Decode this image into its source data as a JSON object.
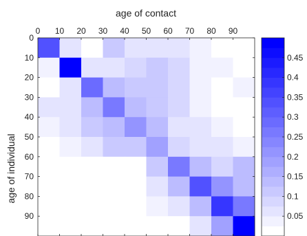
{
  "chart_data": {
    "type": "heatmap",
    "title": "",
    "xlabel": "age of contact",
    "ylabel": "age of individual",
    "x_bins": [
      0,
      10,
      20,
      30,
      40,
      50,
      60,
      70,
      80,
      90
    ],
    "y_bins": [
      0,
      10,
      20,
      30,
      40,
      50,
      60,
      70,
      80,
      90
    ],
    "x_tick_labels": [
      "0",
      "10",
      "20",
      "30",
      "40",
      "50",
      "60",
      "70",
      "80",
      "90"
    ],
    "y_tick_labels": [
      "0",
      "10",
      "20",
      "30",
      "40",
      "50",
      "60",
      "70",
      "80",
      "90"
    ],
    "values": [
      [
        0.33,
        0.05,
        0.02,
        0.12,
        0.06,
        0.06,
        0.06,
        0.03,
        0.02,
        0.02
      ],
      [
        0.03,
        0.49,
        0.05,
        0.05,
        0.08,
        0.1,
        0.08,
        0.03,
        0.03,
        0.0
      ],
      [
        0.0,
        0.05,
        0.28,
        0.15,
        0.1,
        0.1,
        0.08,
        0.03,
        0.0,
        0.03
      ],
      [
        0.07,
        0.07,
        0.15,
        0.25,
        0.15,
        0.12,
        0.09,
        0.03,
        0.0,
        0.0
      ],
      [
        0.03,
        0.05,
        0.1,
        0.15,
        0.22,
        0.14,
        0.07,
        0.05,
        0.03,
        0.0
      ],
      [
        0.0,
        0.03,
        0.07,
        0.1,
        0.1,
        0.18,
        0.08,
        0.05,
        0.05,
        0.04
      ],
      [
        0.0,
        0.0,
        0.0,
        0.0,
        0.0,
        0.1,
        0.25,
        0.15,
        0.08,
        0.13
      ],
      [
        0.0,
        0.0,
        0.0,
        0.02,
        0.02,
        0.05,
        0.13,
        0.33,
        0.2,
        0.15
      ],
      [
        0.0,
        0.0,
        0.0,
        0.0,
        0.0,
        0.03,
        0.05,
        0.14,
        0.38,
        0.25
      ],
      [
        0.0,
        0.0,
        0.0,
        0.0,
        0.0,
        0.02,
        0.02,
        0.05,
        0.18,
        0.48
      ]
    ],
    "colorbar": {
      "min": 0,
      "max": 0.5,
      "levels": 20,
      "ticks": [
        0.05,
        0.1,
        0.15,
        0.2,
        0.25,
        0.3,
        0.35,
        0.4,
        0.45
      ],
      "tick_labels": [
        "0.05",
        "0.1",
        "0.15",
        "0.2",
        "0.25",
        "0.3",
        "0.35",
        "0.4",
        "0.45"
      ],
      "low_color": "#ffffff",
      "high_color": "#0000ff"
    },
    "grid": false,
    "colorbar_position": "right"
  }
}
